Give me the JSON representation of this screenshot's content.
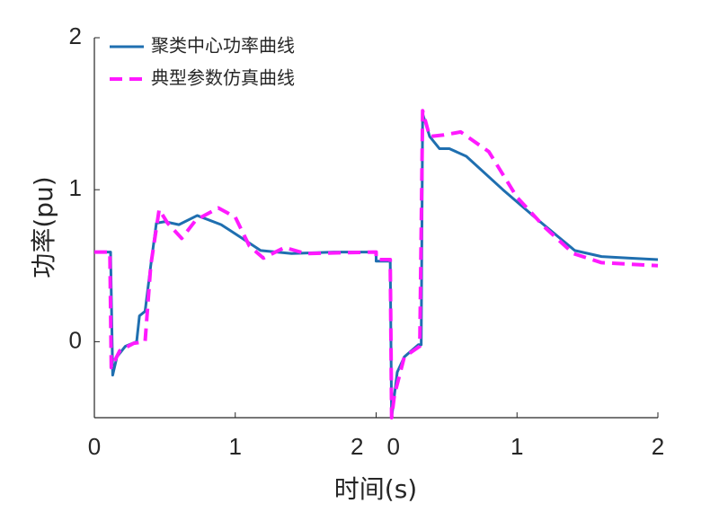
{
  "chart_data": {
    "type": "line",
    "xlabel": "时间(s)",
    "ylabel": "功率(pu)",
    "xlim": [
      0,
      4
    ],
    "ylim": [
      -0.5,
      2
    ],
    "xticks": [
      0,
      1,
      {
        "value": 2,
        "label": "2"
      },
      {
        "value": 2.11,
        "label": "0"
      },
      {
        "value": 3,
        "label": "1"
      },
      {
        "value": 4,
        "label": "2"
      }
    ],
    "yticks": [
      0,
      1,
      2
    ],
    "legend": "upper left",
    "series": [
      {
        "name": "聚类中心功率曲线",
        "color": "#1f6fb0",
        "dash": false,
        "x": [
          0,
          0.115,
          0.13,
          0.16,
          0.22,
          0.3,
          0.32,
          0.36,
          0.4,
          0.44,
          0.5,
          0.6,
          0.73,
          0.9,
          1.05,
          1.18,
          1.4,
          1.7,
          2.0,
          2.0,
          2.1,
          2.11,
          2.15,
          2.2,
          2.3,
          2.32,
          2.33,
          2.38,
          2.45,
          2.52,
          2.64,
          2.9,
          3.15,
          3.41,
          3.6,
          3.8,
          4.0
        ],
        "values": [
          0.59,
          0.59,
          -0.22,
          -0.1,
          -0.03,
          0,
          0.17,
          0.2,
          0.5,
          0.78,
          0.79,
          0.77,
          0.83,
          0.77,
          0.68,
          0.6,
          0.58,
          0.59,
          0.59,
          0.53,
          0.53,
          -0.5,
          -0.2,
          -0.1,
          -0.02,
          -0.02,
          1.5,
          1.35,
          1.27,
          1.27,
          1.22,
          1.0,
          0.8,
          0.6,
          0.56,
          0.55,
          0.54
        ]
      },
      {
        "name": "典型参数仿真曲线",
        "color": "#ff1aff",
        "dash": true,
        "x": [
          0,
          0.11,
          0.12,
          0.18,
          0.28,
          0.36,
          0.4,
          0.46,
          0.52,
          0.62,
          0.72,
          0.88,
          1.0,
          1.1,
          1.2,
          1.35,
          1.5,
          2.0,
          2.0,
          2.1,
          2.11,
          2.13,
          2.2,
          2.31,
          2.33,
          2.38,
          2.48,
          2.6,
          2.8,
          3.0,
          3.2,
          3.4,
          3.6,
          4.0
        ],
        "values": [
          0.59,
          0.59,
          -0.17,
          -0.06,
          -0.01,
          0,
          0.5,
          0.87,
          0.78,
          0.68,
          0.8,
          0.88,
          0.82,
          0.63,
          0.55,
          0.62,
          0.58,
          0.59,
          0.54,
          0.54,
          -0.5,
          -0.35,
          -0.1,
          -0.03,
          1.52,
          1.35,
          1.36,
          1.38,
          1.25,
          0.95,
          0.75,
          0.58,
          0.52,
          0.5
        ]
      }
    ]
  }
}
